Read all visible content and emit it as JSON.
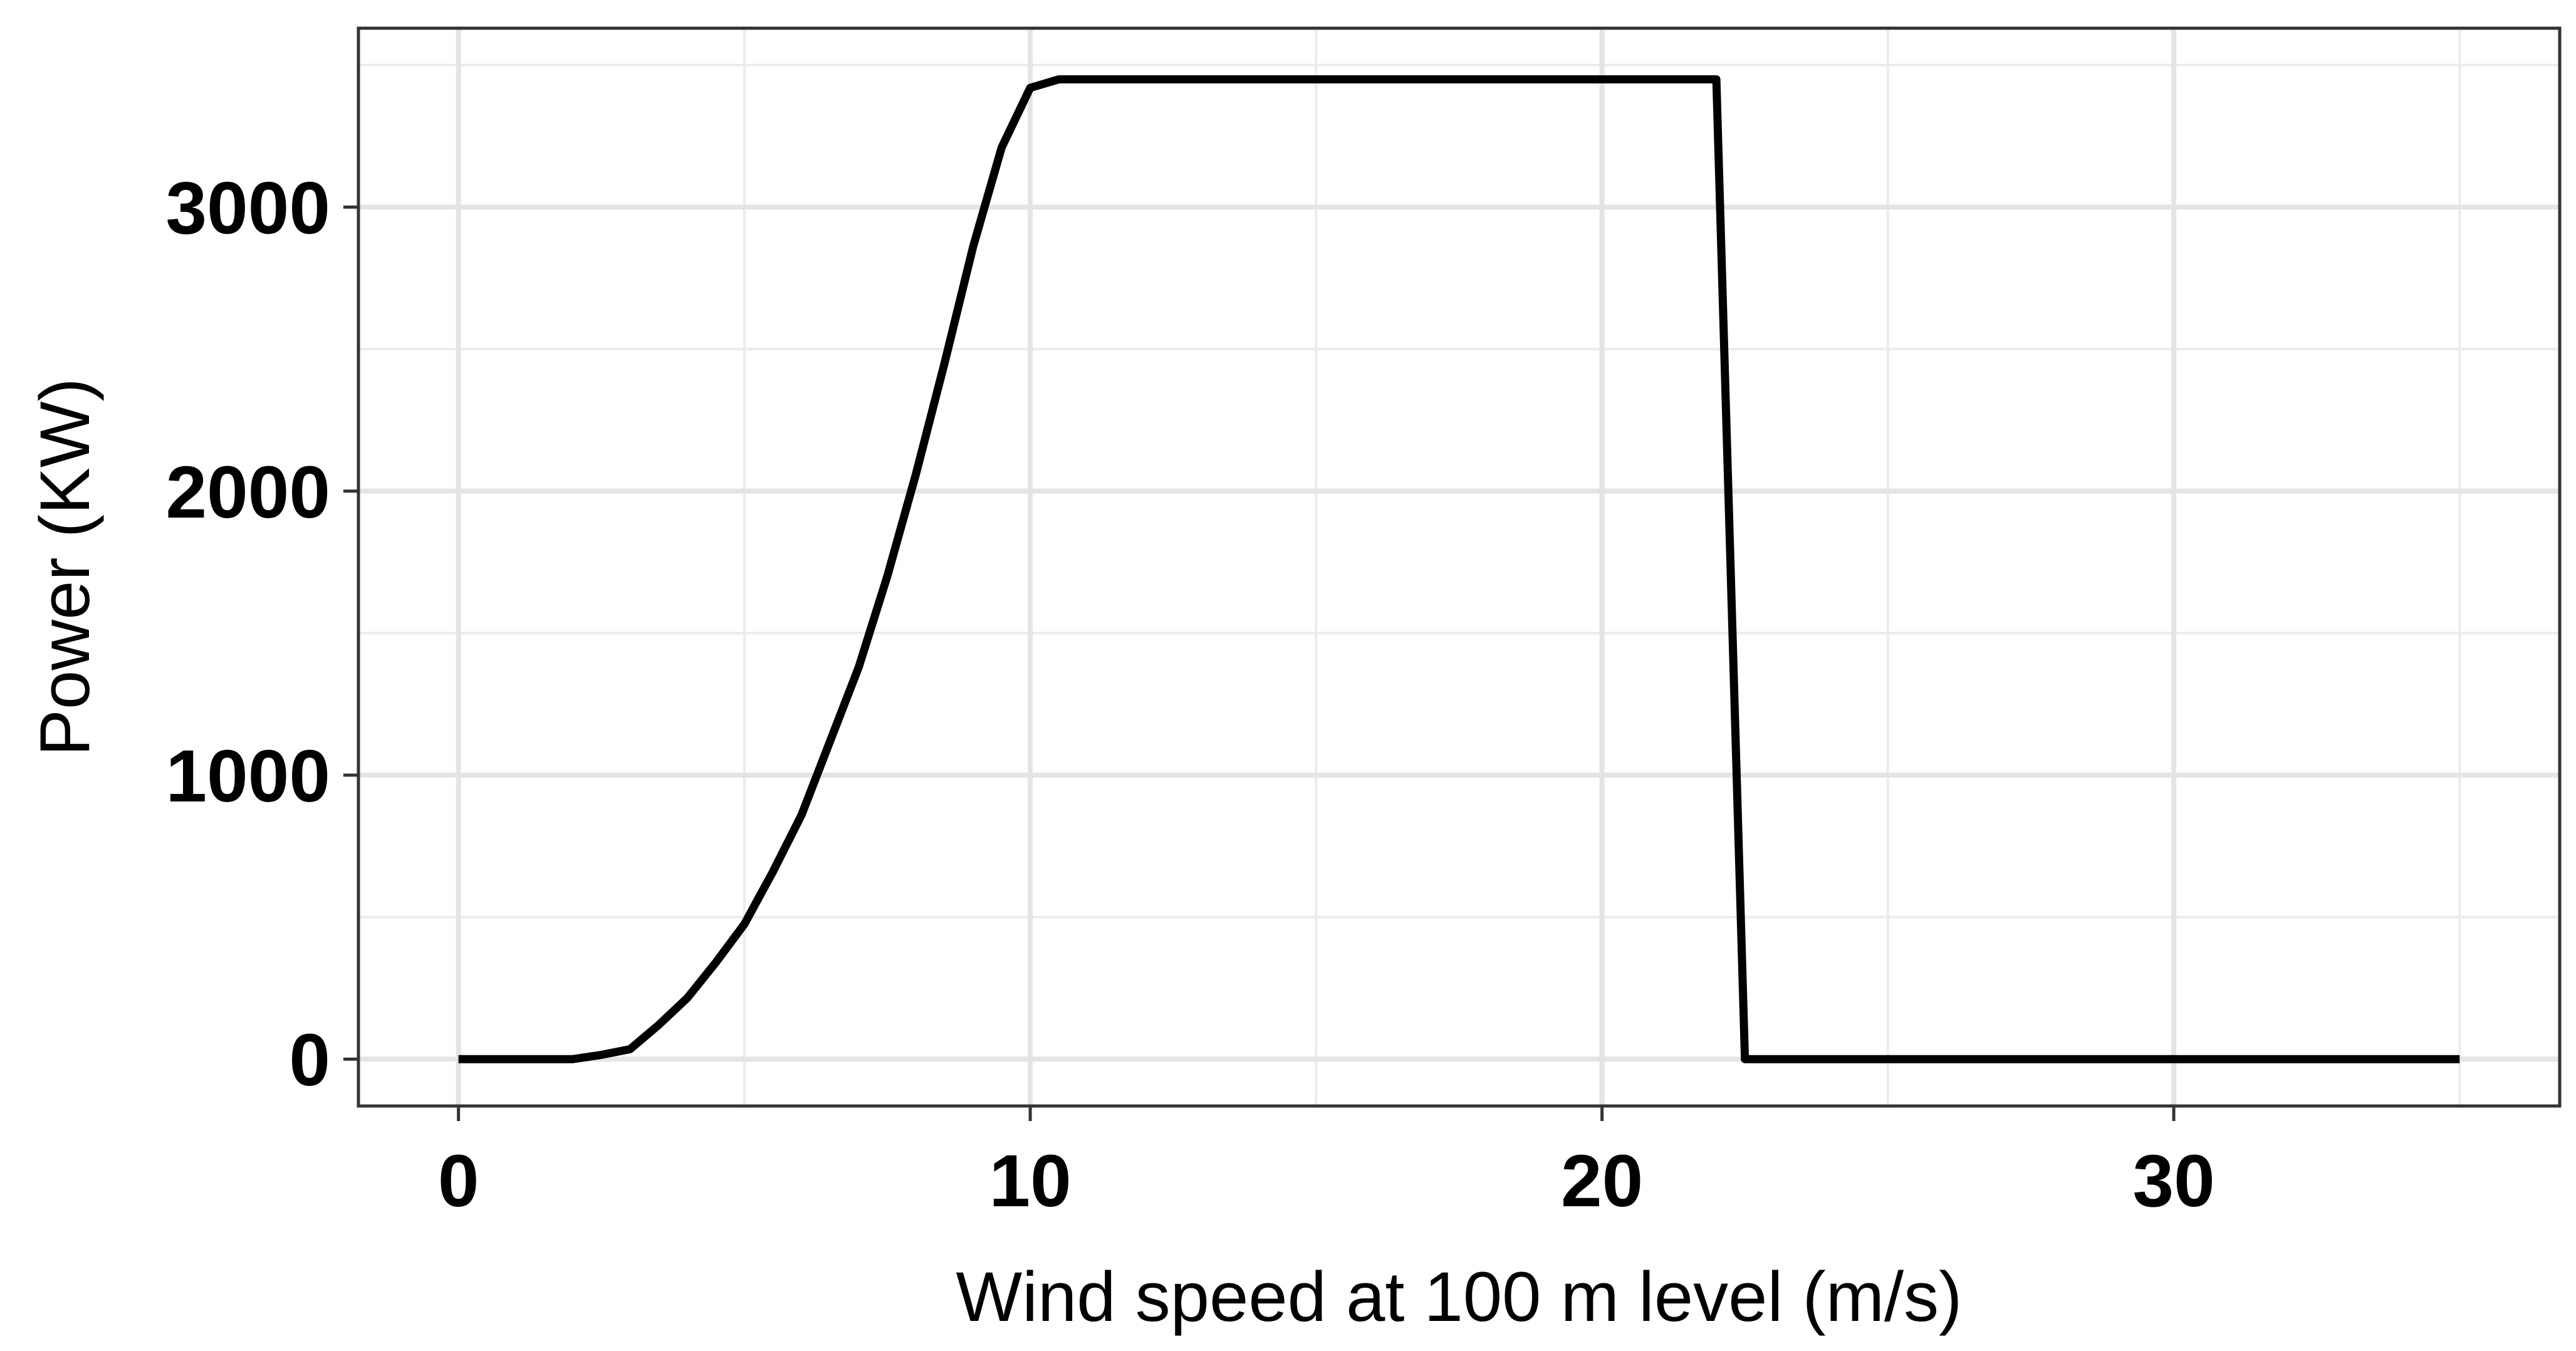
{
  "chart_data": {
    "type": "line",
    "title": "",
    "xlabel": "Wind speed at 100 m level (m/s)",
    "ylabel": "Power (KW)",
    "xlim": [
      -1.75,
      36.75
    ],
    "ylim": [
      -165,
      3630
    ],
    "x_ticks": [
      0,
      10,
      20,
      30
    ],
    "x_tick_labels": [
      "0",
      "10",
      "20",
      "30"
    ],
    "x_minor_ticks": [
      5,
      15,
      25,
      35
    ],
    "y_ticks": [
      0,
      1000,
      2000,
      3000
    ],
    "y_tick_labels": [
      "0",
      "1000",
      "2000",
      "3000"
    ],
    "y_minor_ticks": [
      500,
      1500,
      2500,
      3500
    ],
    "grid": true,
    "legend": "none",
    "series": [
      {
        "color": "#000000",
        "x": [
          0,
          1,
          2,
          2.5,
          3,
          3.5,
          4,
          4.5,
          5,
          5.5,
          6,
          6.5,
          7,
          7.5,
          8,
          8.5,
          9,
          9.5,
          10,
          10.5,
          11,
          12,
          13,
          14,
          15,
          16,
          17,
          18,
          19,
          20,
          21,
          22,
          22.5,
          23,
          24,
          25,
          26,
          27,
          28,
          29,
          30,
          31,
          32,
          33,
          34,
          35
        ],
        "values": [
          0,
          0,
          0,
          15,
          35,
          120,
          215,
          340,
          475,
          660,
          860,
          1120,
          1380,
          1700,
          2060,
          2450,
          2860,
          3210,
          3420,
          3450,
          3450,
          3450,
          3450,
          3450,
          3450,
          3450,
          3450,
          3450,
          3450,
          3450,
          3450,
          3450,
          0,
          0,
          0,
          0,
          0,
          0,
          0,
          0,
          0,
          0,
          0,
          0,
          0,
          0
        ]
      }
    ]
  }
}
